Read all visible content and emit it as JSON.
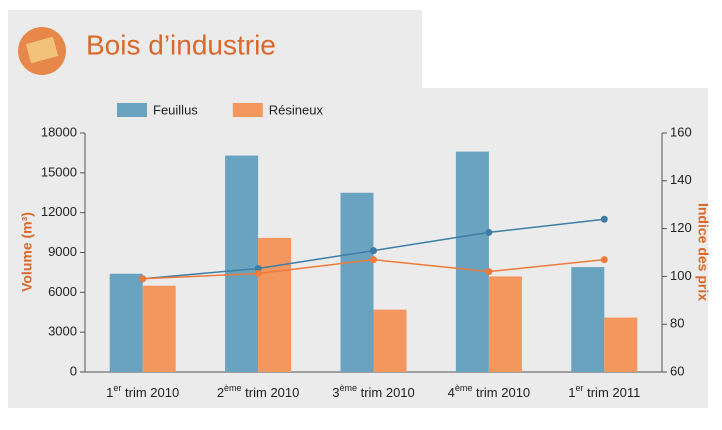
{
  "chart_data": {
    "type": "bar",
    "title": "Bois d’industrie",
    "categories": [
      "1er trim 2010",
      "2ème trim 2010",
      "3ème trim 2010",
      "4ème trim 2010",
      "1er trim 2011"
    ],
    "series": [
      {
        "name": "Feuillus",
        "color": "#6aa3bf",
        "values": [
          7400,
          16300,
          13500,
          16600,
          7900
        ]
      },
      {
        "name": "Résineux",
        "color": "#f4975f",
        "values": [
          6500,
          10100,
          4700,
          7200,
          4100
        ]
      },
      {
        "type": "line",
        "axis": "y2",
        "color": "#3d7ea6",
        "values": [
          99,
          103.3,
          110.8,
          118.4,
          123.9
        ]
      },
      {
        "type": "line",
        "axis": "y2",
        "color": "#ef7a3c",
        "values": [
          99,
          101.2,
          107,
          102,
          107
        ]
      }
    ],
    "ylabel": "Volume (m³)",
    "y2label": "Indice des prix",
    "ylim": [
      0,
      18000
    ],
    "yticks": [
      0,
      3000,
      6000,
      9000,
      12000,
      15000,
      18000
    ],
    "y2lim": [
      60,
      160
    ],
    "y2ticks": [
      60,
      80,
      100,
      120,
      140,
      160
    ]
  }
}
